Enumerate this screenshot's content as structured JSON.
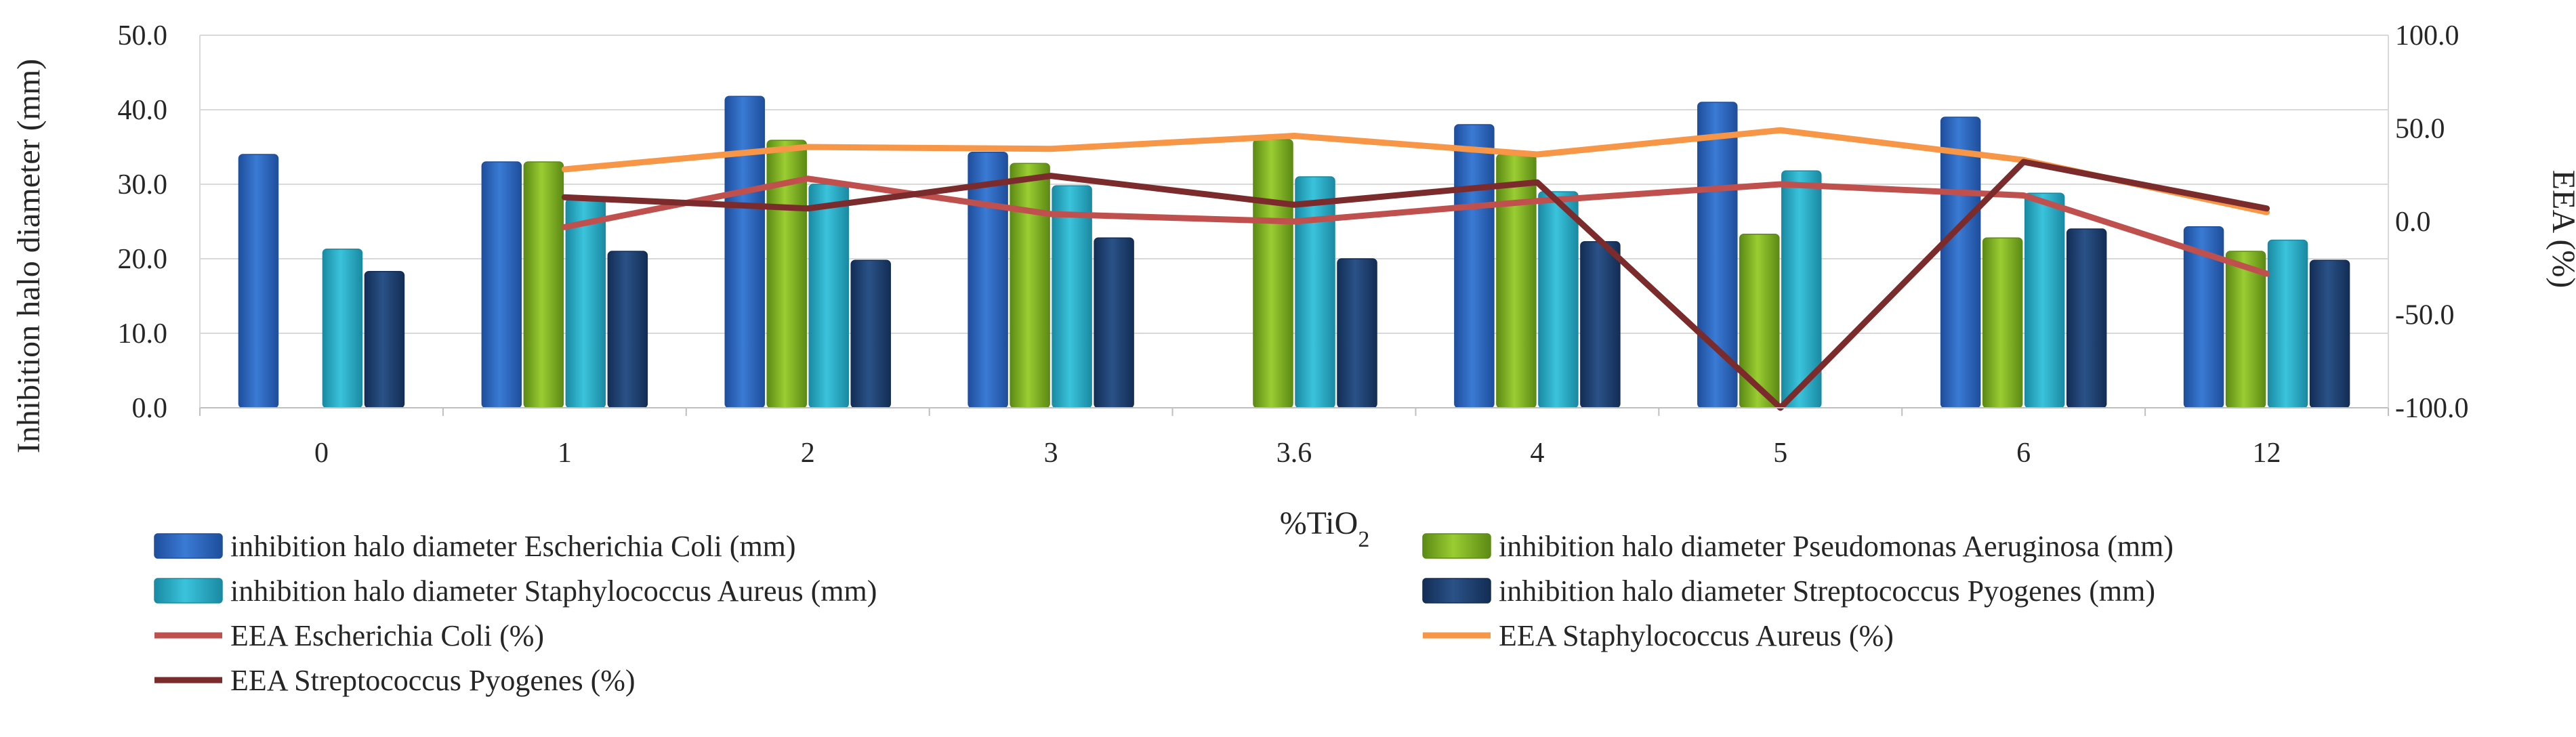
{
  "chart_data": {
    "type": "bar",
    "combo": "bar+line",
    "categories": [
      "0",
      "1",
      "2",
      "3",
      "3.6",
      "4",
      "5",
      "6",
      "12"
    ],
    "xlabel_main": "%TiO",
    "xlabel_sub": "2",
    "ylabel": "Inhibition halo diameter (mm)",
    "y2label": "EEA (%)",
    "ylim": [
      0,
      50
    ],
    "y2lim": [
      -100,
      100
    ],
    "yticks": [
      "0.0",
      "10.0",
      "20.0",
      "30.0",
      "40.0",
      "50.0"
    ],
    "y2ticks": [
      "-100.0",
      "-50.0",
      "0.0",
      "50.0",
      "100.0"
    ],
    "grid": true,
    "legend_position": "bottom",
    "bar_series": [
      {
        "name": "inhibition halo diameter Escherichia Coli (mm)",
        "color": "#3a7bd5",
        "dark": "#1f4e9c",
        "values": [
          34.0,
          33.0,
          41.8,
          34.3,
          null,
          38.0,
          41.0,
          39.0,
          24.3
        ]
      },
      {
        "name": "inhibition halo diameter Pseudomonas Aeruginosa (mm)",
        "color": "#9acd32",
        "dark": "#5c8a14",
        "values": [
          null,
          33.0,
          35.9,
          32.8,
          36.0,
          34.0,
          23.3,
          22.8,
          21.0
        ]
      },
      {
        "name": "inhibition halo diameter Staphylococcus Aureus (mm)",
        "color": "#3bc3dc",
        "dark": "#1a8aa3",
        "values": [
          21.3,
          28.0,
          30.0,
          29.8,
          31.0,
          29.0,
          31.8,
          28.8,
          22.5
        ]
      },
      {
        "name": "inhibition halo diameter Streptococcus Pyogenes (mm)",
        "color": "#2a5288",
        "dark": "#132d55",
        "values": [
          18.3,
          21.0,
          19.8,
          22.8,
          20.0,
          22.3,
          null,
          24.0,
          19.8
        ]
      }
    ],
    "line_series": [
      {
        "name": "EEA Escherichia Coli (%)",
        "color": "#c0504d",
        "values": [
          null,
          -3.0,
          23.0,
          4.0,
          0.0,
          11.0,
          20.0,
          14.0,
          -28.0
        ]
      },
      {
        "name": "EEA Staphylococcus Aureus (%)",
        "color": "#f79646",
        "values": [
          null,
          28.0,
          40.0,
          39.0,
          46.0,
          36.0,
          49.0,
          33.0,
          5.0
        ]
      },
      {
        "name": "EEA Streptococcus Pyogenes (%)",
        "color": "#7b2b2b",
        "values": [
          null,
          13.0,
          7.0,
          24.5,
          9.0,
          21.0,
          -100.0,
          32.0,
          7.0
        ]
      }
    ]
  }
}
